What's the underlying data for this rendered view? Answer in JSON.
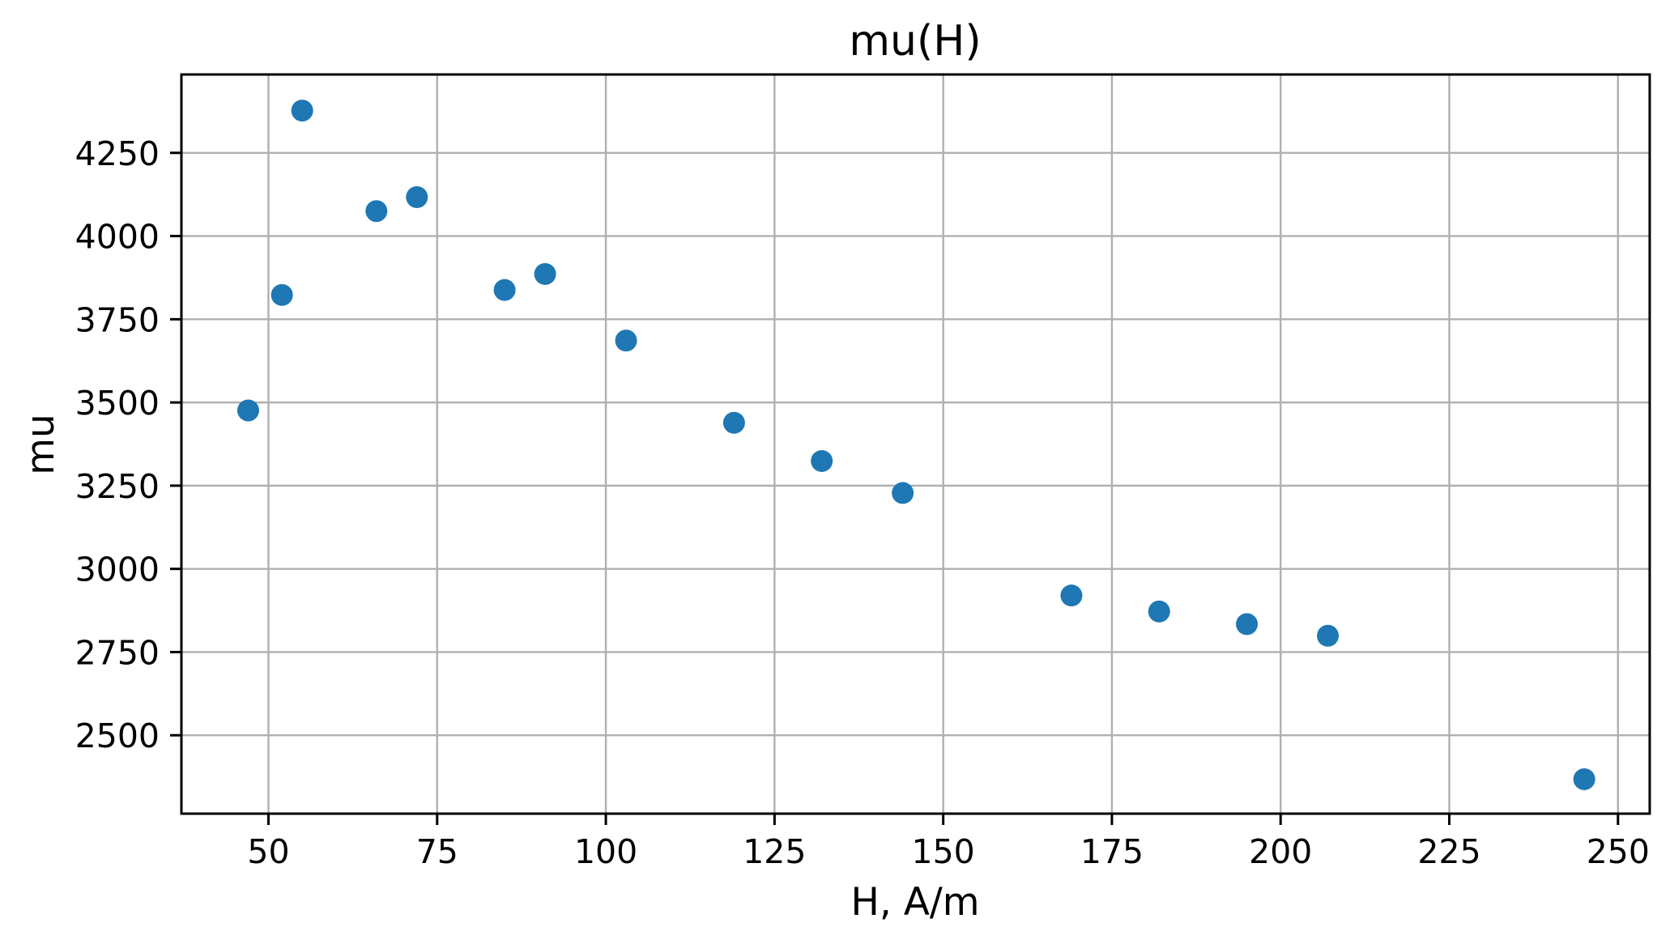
{
  "figure": {
    "background": "#ffffff"
  },
  "chart_data": {
    "type": "scatter",
    "title": "mu(H)",
    "xlabel": "H, A/m",
    "ylabel": "mu",
    "xlim": [
      37.1,
      254.7
    ],
    "ylim": [
      2264.5,
      4485.5
    ],
    "xticks": [
      50,
      75,
      100,
      125,
      150,
      175,
      200,
      225,
      250
    ],
    "yticks": [
      2500,
      2750,
      3000,
      3250,
      3500,
      3750,
      4000,
      4250
    ],
    "grid": true,
    "legend": false,
    "series": [
      {
        "name": "mu",
        "marker": "circle",
        "color": "#1f77b4",
        "points": [
          [
            47,
            3476
          ],
          [
            52,
            3823
          ],
          [
            55,
            4377
          ],
          [
            66,
            4075
          ],
          [
            72,
            4117
          ],
          [
            85,
            3838
          ],
          [
            91,
            3886
          ],
          [
            103,
            3686
          ],
          [
            119,
            3439
          ],
          [
            132,
            3324
          ],
          [
            144,
            3228
          ],
          [
            169,
            2920
          ],
          [
            182,
            2872
          ],
          [
            195,
            2834
          ],
          [
            207,
            2799
          ],
          [
            245,
            2368
          ]
        ]
      }
    ],
    "colors": {
      "point": "#1f77b4",
      "grid": "#b0b0b0",
      "spine": "#000000",
      "text": "#000000"
    }
  }
}
